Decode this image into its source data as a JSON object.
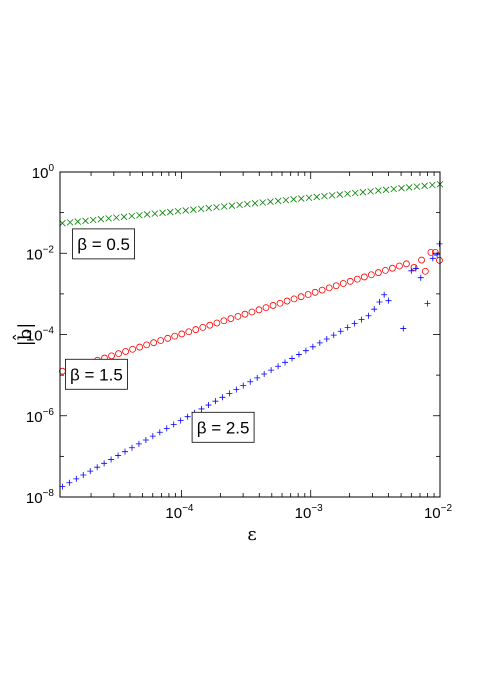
{
  "chart_data": {
    "type": "scatter",
    "xscale": "log",
    "yscale": "log",
    "xlim": [
      1.15e-05,
      0.01
    ],
    "ylim": [
      1e-08,
      1
    ],
    "xlabel": "ε",
    "ylabel": "|b̂|",
    "grid": false,
    "xticks": [
      {
        "value": 0.0001,
        "base": "10",
        "exp": "−4"
      },
      {
        "value": 0.001,
        "base": "10",
        "exp": "−3"
      },
      {
        "value": 0.01,
        "base": "10",
        "exp": "−2"
      }
    ],
    "yticks": [
      {
        "value": 1,
        "base": "10",
        "exp": "0"
      },
      {
        "value": 0.01,
        "base": "10",
        "exp": "−2"
      },
      {
        "value": 0.0001,
        "base": "10",
        "exp": "−4"
      },
      {
        "value": 1e-06,
        "base": "10",
        "exp": "−6"
      },
      {
        "value": 1e-08,
        "base": "10",
        "exp": "−8"
      }
    ],
    "annotations": [
      {
        "text": "β = 0.5",
        "x": 2.5e-05,
        "y": 0.017
      },
      {
        "text": "β = 1.5",
        "x": 2.2e-05,
        "y": 1.05e-05
      },
      {
        "text": "β = 2.5",
        "x": 0.00021,
        "y": 5.2e-07
      }
    ],
    "series": [
      {
        "marker": "x",
        "color": "#008000",
        "x_start": 1.2e-05,
        "x_end": 0.01,
        "count": 50,
        "y_start": 0.055,
        "y_end": 0.5,
        "extra_points": []
      },
      {
        "marker": "o",
        "color": "#ff0000",
        "x_start": 1.2e-05,
        "x_end": 0.0055,
        "count": 50,
        "y_start": 1.25e-05,
        "y_end": 0.0055,
        "extra_points": [
          {
            "x": 0.0063,
            "y": 0.0045
          },
          {
            "x": 0.0072,
            "y": 0.0068
          },
          {
            "x": 0.0077,
            "y": 0.0036
          },
          {
            "x": 0.0085,
            "y": 0.0105
          },
          {
            "x": 0.0092,
            "y": 0.0105
          },
          {
            "x": 0.0099,
            "y": 0.0067
          }
        ]
      },
      {
        "marker": "+",
        "color": "#0000ff",
        "x_start": 1.2e-05,
        "x_end": 0.0028,
        "count": 45,
        "y_start": 1.8e-08,
        "y_end": 0.00029,
        "extra_points": [
          {
            "x": 0.0031,
            "y": 0.00042
          },
          {
            "x": 0.0034,
            "y": 0.00063
          },
          {
            "x": 0.0037,
            "y": 0.00095
          },
          {
            "x": 0.004,
            "y": 0.00068
          },
          {
            "x": 0.0052,
            "y": 0.00014
          },
          {
            "x": 0.006,
            "y": 0.0037
          },
          {
            "x": 0.0065,
            "y": 0.0042
          },
          {
            "x": 0.0071,
            "y": 0.0025
          },
          {
            "x": 0.008,
            "y": 0.00058
          },
          {
            "x": 0.0088,
            "y": 0.0075
          },
          {
            "x": 0.0095,
            "y": 0.0092
          },
          {
            "x": 0.0099,
            "y": 0.017
          }
        ]
      }
    ]
  }
}
